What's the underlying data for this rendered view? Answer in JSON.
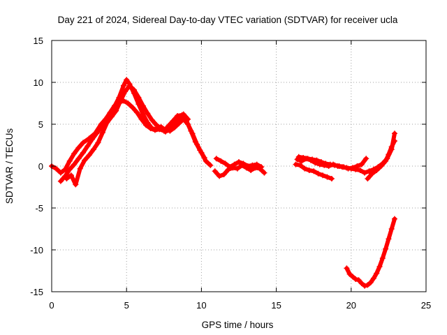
{
  "chart_data": {
    "type": "scatter",
    "title": "Day 221 of 2024, Sidereal Day-to-day VTEC variation (SDTVAR) for receiver ucla",
    "xlabel": "GPS time / hours",
    "ylabel": "SDTVAR / TECUs",
    "xlim": [
      0,
      25
    ],
    "ylim": [
      -15,
      15
    ],
    "xticks": [
      0,
      5,
      10,
      15,
      20,
      25
    ],
    "yticks": [
      -15,
      -10,
      -5,
      0,
      5,
      10,
      15
    ],
    "grid": true,
    "marker": "plus",
    "color": "#ff0000",
    "series": [
      {
        "name": "track-a",
        "x": [
          0.0,
          0.3,
          0.6,
          0.9,
          1.2,
          1.5,
          1.8,
          2.1,
          2.5,
          2.9,
          3.3,
          3.7,
          4.1,
          4.5,
          4.8,
          5.0,
          5.2,
          5.5,
          5.8,
          6.1,
          6.4,
          6.7,
          7.0,
          7.3,
          7.6,
          7.9,
          8.2,
          8.5,
          8.8,
          9.1,
          9.4,
          9.7,
          10.0,
          10.3,
          10.6
        ],
        "y": [
          0.0,
          -0.3,
          -0.8,
          -0.4,
          0.6,
          1.5,
          2.2,
          2.8,
          3.3,
          3.9,
          5.0,
          5.8,
          6.8,
          8.2,
          9.6,
          10.3,
          9.8,
          8.7,
          7.4,
          6.2,
          5.2,
          4.5,
          4.4,
          4.7,
          4.3,
          4.2,
          4.6,
          5.1,
          5.6,
          5.0,
          3.9,
          2.6,
          1.6,
          0.6,
          0.1
        ]
      },
      {
        "name": "track-b",
        "x": [
          0.6,
          0.9,
          1.2,
          1.5,
          1.8,
          2.1,
          2.4,
          2.7,
          3.0,
          3.3,
          3.6,
          3.9,
          4.2,
          4.5,
          4.8,
          5.1,
          5.4,
          5.7,
          6.0,
          6.3,
          6.6,
          6.9,
          7.2,
          7.5,
          7.8,
          8.1,
          8.4,
          8.7,
          9.0,
          9.3,
          9.6,
          9.9,
          10.2
        ],
        "y": [
          -1.8,
          -1.2,
          -0.4,
          0.2,
          0.9,
          1.6,
          2.4,
          3.2,
          3.9,
          4.6,
          5.6,
          6.4,
          7.2,
          7.6,
          7.8,
          7.5,
          7.0,
          6.4,
          5.6,
          4.9,
          4.5,
          4.3,
          4.4,
          4.2,
          4.8,
          5.4,
          6.0,
          6.1,
          5.4,
          4.2,
          2.9,
          1.9,
          1.0
        ]
      },
      {
        "name": "track-c",
        "x": [
          1.0,
          1.3,
          1.6,
          1.9,
          2.2,
          2.5,
          2.8,
          3.1,
          3.4,
          3.7,
          4.0,
          4.3,
          4.6,
          4.9,
          5.2,
          5.5,
          5.8,
          6.1,
          6.4,
          6.7,
          7.0,
          7.3,
          7.6,
          7.9,
          8.2,
          8.5,
          8.8,
          9.1
        ],
        "y": [
          -1.5,
          -1.1,
          -2.2,
          -0.3,
          0.7,
          1.3,
          2.0,
          2.8,
          4.0,
          5.2,
          5.9,
          6.6,
          7.8,
          8.9,
          9.6,
          9.1,
          8.2,
          7.2,
          6.3,
          5.5,
          4.9,
          4.5,
          4.1,
          4.4,
          5.0,
          5.7,
          6.2,
          5.6
        ]
      },
      {
        "name": "track-d",
        "x": [
          10.9,
          11.2,
          11.5,
          11.8,
          12.1,
          12.4,
          12.7,
          13.0,
          13.3,
          13.6,
          13.9,
          14.2
        ],
        "y": [
          -0.6,
          -1.2,
          -1.0,
          -0.4,
          -0.2,
          -0.3,
          0.1,
          -0.2,
          -0.5,
          -0.2,
          -0.3,
          -0.8
        ]
      },
      {
        "name": "track-e",
        "x": [
          11.0,
          11.3,
          11.6,
          11.9,
          12.2,
          12.5,
          12.8,
          13.1,
          13.4,
          13.7,
          14.0
        ],
        "y": [
          0.9,
          0.6,
          0.3,
          -0.1,
          0.2,
          0.5,
          0.3,
          0.0,
          0.1,
          0.2,
          -0.1
        ]
      },
      {
        "name": "track-f",
        "x": [
          16.3,
          16.6,
          16.9,
          17.2,
          17.5,
          17.8,
          18.1,
          18.4,
          18.7
        ],
        "y": [
          0.2,
          0.1,
          -0.3,
          -0.5,
          -0.6,
          -0.9,
          -1.1,
          -1.3,
          -1.5
        ]
      },
      {
        "name": "track-g",
        "x": [
          16.4,
          16.7,
          17.0,
          17.3,
          17.6,
          17.9,
          18.2,
          18.5,
          18.8,
          19.1,
          19.4,
          19.7,
          20.0,
          20.3,
          20.6,
          20.9,
          21.2,
          21.5,
          21.8,
          22.1,
          22.4,
          22.7,
          22.9
        ],
        "y": [
          0.8,
          0.6,
          0.9,
          0.7,
          0.4,
          0.2,
          0.1,
          0.0,
          0.2,
          0.0,
          -0.1,
          -0.2,
          -0.3,
          -0.4,
          -0.5,
          -0.8,
          -0.6,
          -0.4,
          -0.1,
          0.3,
          0.9,
          2.0,
          3.9
        ]
      },
      {
        "name": "track-h",
        "x": [
          16.5,
          16.8,
          17.1,
          17.4,
          17.7,
          18.0,
          18.3,
          18.6,
          18.9,
          19.2,
          19.5,
          19.8,
          20.1,
          20.4,
          20.7,
          21.0
        ],
        "y": [
          1.1,
          1.0,
          0.9,
          0.8,
          0.7,
          0.5,
          0.3,
          0.2,
          0.1,
          0.0,
          -0.1,
          -0.3,
          -0.2,
          0.0,
          0.2,
          0.9
        ]
      },
      {
        "name": "track-i",
        "x": [
          21.1,
          21.4,
          21.7,
          22.0,
          22.3,
          22.5,
          22.7,
          22.9
        ],
        "y": [
          -1.5,
          -0.9,
          -0.5,
          0.0,
          0.6,
          1.4,
          2.3,
          3.0
        ]
      },
      {
        "name": "track-j",
        "x": [
          19.7,
          19.9,
          20.1,
          20.3,
          20.5,
          20.7,
          20.9,
          21.1,
          21.3,
          21.5,
          21.7,
          21.9,
          22.1,
          22.3,
          22.5,
          22.7,
          22.9
        ],
        "y": [
          -12.2,
          -12.9,
          -13.2,
          -13.5,
          -13.6,
          -14.0,
          -14.3,
          -14.2,
          -13.9,
          -13.4,
          -12.8,
          -12.0,
          -11.0,
          -9.9,
          -8.7,
          -7.5,
          -6.3
        ]
      }
    ]
  }
}
